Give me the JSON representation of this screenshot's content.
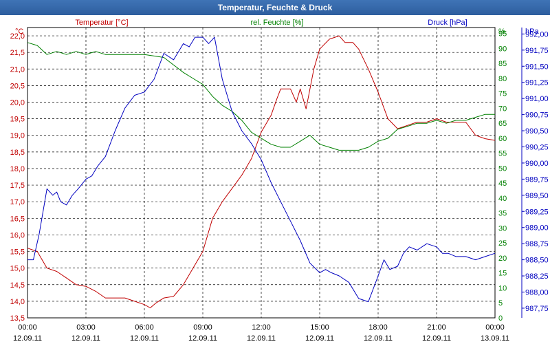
{
  "window": {
    "title": "Temperatur, Feuchte & Druck"
  },
  "chart_data": {
    "type": "line",
    "title": "Temperatur, Feuchte & Druck",
    "grid": true,
    "axes": {
      "temperature": {
        "label": "Temperatur [°C]",
        "unit": "°C",
        "range": [
          13.5,
          22.25
        ],
        "ticks": [
          "13,5",
          "14,0",
          "14,5",
          "15,0",
          "15,5",
          "16,0",
          "16,5",
          "17,0",
          "17,5",
          "18,0",
          "18,5",
          "19,0",
          "19,5",
          "20,0",
          "20,5",
          "21,0",
          "21,5",
          "22,0"
        ],
        "color": "#c00000"
      },
      "humidity": {
        "label": "rel. Feuchte [%]",
        "unit": "%",
        "range": [
          0,
          97
        ],
        "ticks": [
          "0",
          "5",
          "10",
          "15",
          "20",
          "25",
          "30",
          "35",
          "40",
          "45",
          "50",
          "55",
          "60",
          "65",
          "70",
          "75",
          "80",
          "85",
          "90",
          "95"
        ],
        "color": "#008000"
      },
      "pressure": {
        "label": "Druck [hPa]",
        "unit": "hPa",
        "range": [
          987.6,
          992.1
        ],
        "ticks": [
          "987,75",
          "988,00",
          "988,25",
          "988,50",
          "988,75",
          "989,00",
          "989,25",
          "989,50",
          "989,75",
          "990,00",
          "990,25",
          "990,50",
          "990,75",
          "991,00",
          "991,25",
          "991,50",
          "991,75",
          "992,00"
        ],
        "color": "#0000c0"
      },
      "x": {
        "range": [
          0,
          24
        ],
        "ticks": [
          {
            "time": "00:00",
            "date": "12.09.11"
          },
          {
            "time": "03:00",
            "date": "12.09.11"
          },
          {
            "time": "06:00",
            "date": "12.09.11"
          },
          {
            "time": "09:00",
            "date": "12.09.11"
          },
          {
            "time": "12:00",
            "date": "12.09.11"
          },
          {
            "time": "15:00",
            "date": "12.09.11"
          },
          {
            "time": "18:00",
            "date": "12.09.11"
          },
          {
            "time": "21:00",
            "date": "12.09.11"
          },
          {
            "time": "00:00",
            "date": "13.09.11"
          }
        ]
      }
    },
    "series": [
      {
        "name": "Temperatur [°C]",
        "axis": "temperature",
        "color": "#c00000",
        "x": [
          0,
          0.5,
          1,
          1.5,
          2,
          2.5,
          3,
          3.5,
          4,
          5,
          5.5,
          6,
          6.3,
          6.6,
          7,
          7.5,
          8,
          8.5,
          9,
          9.5,
          10,
          10.5,
          11,
          11.5,
          12,
          12.5,
          12.8,
          13,
          13.5,
          13.8,
          14,
          14.3,
          14.7,
          15,
          15.5,
          16,
          16.3,
          16.7,
          17,
          17.5,
          18,
          18.5,
          19,
          19.5,
          20,
          20.5,
          21,
          21.5,
          22,
          22.5,
          23,
          23.5,
          24
        ],
        "y": [
          15.6,
          15.5,
          15.0,
          14.9,
          14.7,
          14.5,
          14.45,
          14.3,
          14.1,
          14.1,
          14.0,
          13.9,
          13.8,
          13.95,
          14.1,
          14.15,
          14.5,
          15.0,
          15.5,
          16.5,
          17.0,
          17.4,
          17.8,
          18.3,
          19.1,
          19.6,
          20.1,
          20.4,
          20.4,
          20.0,
          20.4,
          19.8,
          21.0,
          21.6,
          21.9,
          22.0,
          21.8,
          21.8,
          21.6,
          21.0,
          20.3,
          19.5,
          19.2,
          19.3,
          19.4,
          19.4,
          19.5,
          19.4,
          19.4,
          19.4,
          19.0,
          18.9,
          18.85
        ]
      },
      {
        "name": "rel. Feuchte [%]",
        "axis": "humidity",
        "color": "#008000",
        "x": [
          0,
          0.5,
          1,
          1.5,
          2,
          2.5,
          3,
          3.5,
          4,
          5,
          6,
          7,
          8,
          8.5,
          9,
          9.5,
          10,
          10.5,
          11,
          11.5,
          12,
          12.5,
          13,
          13.5,
          14,
          14.5,
          15,
          15.5,
          16,
          16.5,
          17,
          17.5,
          18,
          18.5,
          19,
          19.5,
          20,
          20.5,
          21,
          21.5,
          22,
          22.5,
          23,
          23.5,
          24
        ],
        "y": [
          92,
          91,
          88,
          89,
          88,
          89,
          88,
          89,
          88,
          88,
          88,
          87,
          82,
          80,
          78,
          74,
          71,
          69,
          66,
          62,
          60,
          58,
          57,
          57,
          59,
          61,
          58,
          57,
          56,
          56,
          56,
          57,
          59,
          60,
          63,
          64,
          65,
          65,
          66,
          65,
          66,
          66,
          67,
          68,
          68
        ]
      },
      {
        "name": "Druck [hPa]",
        "axis": "pressure",
        "color": "#0000c0",
        "x": [
          0,
          0.3,
          0.6,
          1,
          1.3,
          1.5,
          1.7,
          2,
          2.3,
          2.6,
          3,
          3.3,
          3.6,
          4,
          4.5,
          5,
          5.5,
          6,
          6.5,
          7,
          7.5,
          8,
          8.3,
          8.6,
          9,
          9.3,
          9.6,
          10,
          10.5,
          11,
          11.5,
          12,
          12.5,
          13,
          13.5,
          14,
          14.5,
          15,
          15.3,
          15.6,
          16,
          16.5,
          17,
          17.5,
          18,
          18.3,
          18.6,
          19,
          19.3,
          19.6,
          20,
          20.5,
          21,
          21.3,
          21.6,
          22,
          22.5,
          23,
          23.5,
          24
        ],
        "y": [
          988.5,
          988.5,
          988.9,
          989.6,
          989.5,
          989.55,
          989.4,
          989.35,
          989.5,
          989.6,
          989.75,
          989.8,
          989.95,
          990.1,
          990.5,
          990.85,
          991.05,
          991.1,
          991.3,
          991.7,
          991.6,
          991.85,
          991.8,
          991.95,
          991.95,
          991.85,
          991.95,
          991.3,
          990.8,
          990.5,
          990.3,
          990.05,
          989.7,
          989.4,
          989.1,
          988.8,
          988.45,
          988.3,
          988.35,
          988.3,
          988.25,
          988.15,
          987.9,
          987.85,
          988.25,
          988.5,
          988.35,
          988.4,
          988.6,
          988.7,
          988.65,
          988.75,
          988.7,
          988.6,
          988.6,
          988.55,
          988.55,
          988.5,
          988.55,
          988.6
        ]
      }
    ]
  }
}
